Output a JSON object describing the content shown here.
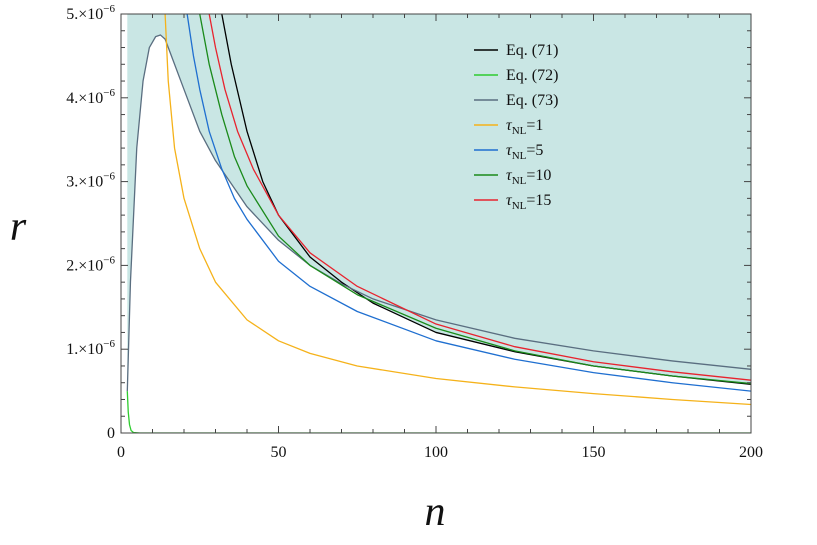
{
  "chart_data": {
    "type": "line",
    "title": "",
    "xlabel": "n",
    "ylabel": "r",
    "xlim": [
      0,
      200
    ],
    "ylim": [
      0,
      5e-06
    ],
    "grid": false,
    "legend_position": "top-right",
    "shaded_region_color": "#c9e6e4",
    "x_ticks": [
      {
        "value": 0,
        "label": "0"
      },
      {
        "value": 50,
        "label": "50"
      },
      {
        "value": 100,
        "label": "100"
      },
      {
        "value": 150,
        "label": "150"
      },
      {
        "value": 200,
        "label": "200"
      }
    ],
    "y_ticks": [
      {
        "value": 0,
        "mantissa": "0",
        "exponent": ""
      },
      {
        "value": 1e-06,
        "mantissa": "1.×10",
        "exponent": "−6"
      },
      {
        "value": 2e-06,
        "mantissa": "2.×10",
        "exponent": "−6"
      },
      {
        "value": 3e-06,
        "mantissa": "3.×10",
        "exponent": "−6"
      },
      {
        "value": 4e-06,
        "mantissa": "4.×10",
        "exponent": "−6"
      },
      {
        "value": 5e-06,
        "mantissa": "5.×10",
        "exponent": "−6"
      }
    ],
    "series": [
      {
        "name": "Eq. (71)",
        "name_main": "Eq. (71)",
        "name_sub": "",
        "name_tail": "",
        "color": "#000000",
        "x": [
          32,
          35,
          40,
          45,
          50,
          60,
          70,
          80,
          100,
          125,
          150,
          175,
          200
        ],
        "y": [
          5e-06,
          4.4e-06,
          3.6e-06,
          3e-06,
          2.6e-06,
          2.1e-06,
          1.8e-06,
          1.55e-06,
          1.2e-06,
          9.7e-07,
          8e-07,
          6.8e-07,
          5.8e-07
        ]
      },
      {
        "name": "Eq. (72)",
        "name_main": "Eq. (72)",
        "name_sub": "",
        "name_tail": "",
        "color": "#2ecc2e",
        "x": [
          2,
          2.3,
          2.7,
          3.2,
          4,
          6,
          10,
          50,
          100,
          150,
          200
        ],
        "y": [
          5e-07,
          2.5e-07,
          1e-07,
          3e-08,
          5e-09,
          0,
          0,
          0,
          0,
          0,
          0
        ]
      },
      {
        "name": "Eq. (73)",
        "name_main": "Eq. (73)",
        "name_sub": "",
        "name_tail": "",
        "color": "#5a6e80",
        "x": [
          2,
          3,
          5,
          7,
          9,
          11,
          12.5,
          14,
          16,
          20,
          25,
          30,
          40,
          50,
          60,
          70,
          80,
          100,
          125,
          150,
          175,
          200
        ],
        "y": [
          5e-07,
          1.8e-06,
          3.4e-06,
          4.2e-06,
          4.6e-06,
          4.73e-06,
          4.75e-06,
          4.7e-06,
          4.5e-06,
          4.1e-06,
          3.6e-06,
          3.25e-06,
          2.7e-06,
          2.3e-06,
          2e-06,
          1.78e-06,
          1.6e-06,
          1.35e-06,
          1.13e-06,
          9.8e-07,
          8.6e-07,
          7.6e-07
        ]
      },
      {
        "name": "τNL=1",
        "name_main": "τ",
        "name_sub": "NL",
        "name_tail": "=1",
        "color": "#f5b21a",
        "x": [
          14,
          15,
          17,
          20,
          25,
          30,
          40,
          50,
          60,
          75,
          100,
          125,
          150,
          175,
          200
        ],
        "y": [
          5e-06,
          4.2e-06,
          3.4e-06,
          2.8e-06,
          2.2e-06,
          1.8e-06,
          1.35e-06,
          1.1e-06,
          9.5e-07,
          8e-07,
          6.5e-07,
          5.5e-07,
          4.7e-07,
          4e-07,
          3.4e-07
        ]
      },
      {
        "name": "τNL=5",
        "name_main": "τ",
        "name_sub": "NL",
        "name_tail": "=5",
        "color": "#1f6fd0",
        "x": [
          21,
          23,
          25,
          28,
          32,
          36,
          40,
          50,
          60,
          75,
          100,
          125,
          150,
          175,
          200
        ],
        "y": [
          5e-06,
          4.5e-06,
          4.1e-06,
          3.6e-06,
          3.15e-06,
          2.8e-06,
          2.55e-06,
          2.05e-06,
          1.75e-06,
          1.45e-06,
          1.1e-06,
          8.8e-07,
          7.2e-07,
          6e-07,
          5e-07
        ]
      },
      {
        "name": "τNL=10",
        "name_main": "τ",
        "name_sub": "NL",
        "name_tail": "=10",
        "color": "#1a8a1a",
        "x": [
          25,
          28,
          32,
          36,
          40,
          50,
          60,
          75,
          100,
          125,
          150,
          175,
          200
        ],
        "y": [
          5e-06,
          4.4e-06,
          3.8e-06,
          3.3e-06,
          2.95e-06,
          2.35e-06,
          2e-06,
          1.65e-06,
          1.25e-06,
          9.8e-07,
          8e-07,
          6.8e-07,
          5.9e-07
        ]
      },
      {
        "name": "τNL=15",
        "name_main": "τ",
        "name_sub": "NL",
        "name_tail": "=15",
        "color": "#e8232e",
        "x": [
          28,
          30,
          33,
          37,
          42,
          50,
          60,
          75,
          100,
          125,
          150,
          175,
          200
        ],
        "y": [
          5e-06,
          4.6e-06,
          4.1e-06,
          3.6e-06,
          3.15e-06,
          2.6e-06,
          2.15e-06,
          1.75e-06,
          1.3e-06,
          1.03e-06,
          8.5e-07,
          7.3e-07,
          6.3e-07
        ]
      }
    ]
  }
}
